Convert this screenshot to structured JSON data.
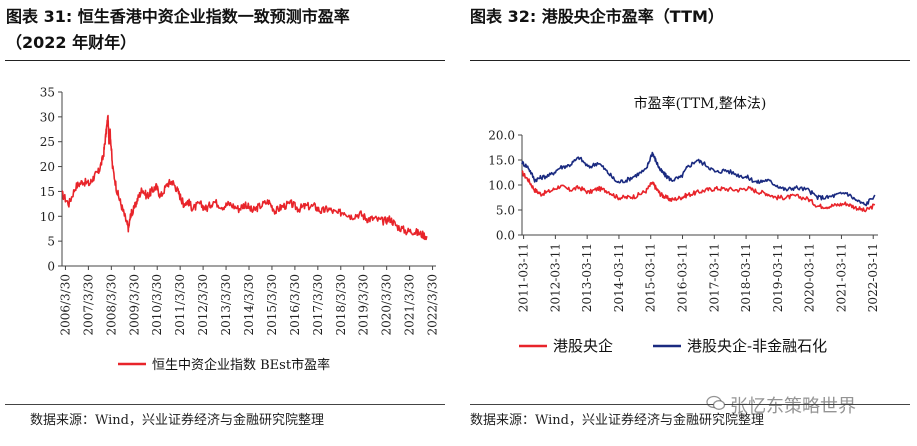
{
  "left_panel": {
    "title_line1": "图表 31:  恒生香港中资企业指数一致预测市盈率",
    "title_line2": "（2022 年财年）",
    "source": "数据来源：Wind，兴业证券经济与金融研究院整理"
  },
  "right_panel": {
    "title": "图表 32:  港股央企市盈率（TTM）",
    "source": "数据来源：Wind，兴业证券经济与金融研究院整理"
  },
  "watermark": "张忆东策略世界",
  "colors": {
    "red": "#e8242a",
    "navy": "#1a2a80",
    "axis": "#444444"
  },
  "chart_data": [
    {
      "type": "line",
      "title": "",
      "xlabel": "",
      "ylabel": "",
      "ylim": [
        0,
        35
      ],
      "yticks": [
        0,
        5,
        10,
        15,
        20,
        25,
        30,
        35
      ],
      "x_categories": [
        "2006/3/30",
        "2007/3/30",
        "2008/3/30",
        "2009/3/30",
        "2010/3/30",
        "2011/3/30",
        "2012/3/30",
        "2013/3/30",
        "2014/3/30",
        "2015/3/30",
        "2016/3/30",
        "2017/3/30",
        "2018/3/30",
        "2019/3/30",
        "2020/3/30",
        "2021/3/30",
        "2022/3/30"
      ],
      "legend": [
        "恒生中资企业指数 BEst市盈率"
      ],
      "series": [
        {
          "name": "恒生中资企业指数 BEst市盈率",
          "color": "#e8242a",
          "x": [
            0.0,
            0.3,
            0.6,
            0.9,
            1.2,
            1.4,
            1.6,
            1.8,
            1.9,
            2.0,
            2.05,
            2.1,
            2.2,
            2.4,
            2.6,
            2.8,
            2.9,
            3.0,
            3.1,
            3.3,
            3.5,
            3.7,
            3.9,
            4.1,
            4.3,
            4.6,
            4.8,
            5.0,
            5.2,
            5.3,
            5.5,
            5.7,
            6.0,
            6.3,
            6.6,
            7.0,
            7.3,
            7.7,
            8.0,
            8.3,
            8.6,
            9.0,
            9.3,
            9.6,
            10.0,
            10.3,
            10.6,
            11.0,
            11.3,
            11.6,
            12.0,
            12.3,
            12.6,
            13.0,
            13.3,
            13.6,
            14.0,
            14.3,
            14.6,
            15.0,
            15.3,
            15.6,
            15.9
          ],
          "values": [
            14.5,
            12.5,
            16.0,
            17.0,
            16.5,
            18.0,
            19.0,
            22.0,
            26.0,
            30.0,
            25.0,
            27.0,
            20.0,
            15.0,
            12.0,
            9.0,
            7.5,
            10.5,
            11.0,
            13.5,
            15.5,
            14.0,
            15.0,
            16.0,
            14.0,
            16.5,
            17.0,
            15.5,
            13.5,
            12.5,
            13.0,
            11.5,
            12.5,
            11.5,
            13.0,
            12.0,
            12.5,
            11.5,
            12.5,
            11.0,
            12.0,
            13.0,
            11.0,
            12.0,
            12.5,
            11.5,
            12.0,
            12.0,
            11.0,
            11.5,
            10.5,
            11.0,
            10.0,
            10.5,
            9.5,
            9.5,
            9.0,
            9.5,
            8.0,
            7.0,
            7.0,
            6.5,
            6.0
          ]
        }
      ]
    },
    {
      "type": "line",
      "title": "市盈率(TTM,整体法)",
      "xlabel": "",
      "ylabel": "",
      "ylim": [
        0,
        20
      ],
      "yticks": [
        "0.0",
        "5.0",
        "10.0",
        "15.0",
        "20.0"
      ],
      "x_categories": [
        "2011-03-11",
        "2012-03-11",
        "2013-03-11",
        "2014-03-11",
        "2015-03-11",
        "2016-03-11",
        "2017-03-11",
        "2018-03-11",
        "2019-03-11",
        "2020-03-11",
        "2021-03-11",
        "2022-03-11"
      ],
      "legend": [
        "港股央企",
        "港股央企-非金融石化"
      ],
      "series": [
        {
          "name": "港股央企",
          "color": "#e8242a",
          "x": [
            0.0,
            0.2,
            0.4,
            0.6,
            0.9,
            1.2,
            1.5,
            1.8,
            2.1,
            2.4,
            2.7,
            3.0,
            3.3,
            3.6,
            3.9,
            4.1,
            4.2,
            4.35,
            4.5,
            4.7,
            5.0,
            5.2,
            5.5,
            5.8,
            6.1,
            6.4,
            6.8,
            7.1,
            7.4,
            7.7,
            8.0,
            8.3,
            8.6,
            9.0,
            9.3,
            9.6,
            9.9,
            10.2,
            10.5,
            10.8,
            11.1
          ],
          "values": [
            12.5,
            11.0,
            9.0,
            8.2,
            8.8,
            9.8,
            9.0,
            9.5,
            8.5,
            9.3,
            8.8,
            7.5,
            7.5,
            7.8,
            8.8,
            10.5,
            9.5,
            8.2,
            7.6,
            7.0,
            7.5,
            8.0,
            8.5,
            9.0,
            9.3,
            9.2,
            9.0,
            9.4,
            8.7,
            8.3,
            7.5,
            7.5,
            7.8,
            7.2,
            5.8,
            5.7,
            6.0,
            6.3,
            5.5,
            4.8,
            6.0
          ]
        },
        {
          "name": "港股央企-非金融石化",
          "color": "#1a2a80",
          "x": [
            0.0,
            0.2,
            0.4,
            0.6,
            0.9,
            1.2,
            1.5,
            1.8,
            2.1,
            2.4,
            2.7,
            3.0,
            3.3,
            3.6,
            3.9,
            4.1,
            4.2,
            4.35,
            4.5,
            4.7,
            5.0,
            5.2,
            5.5,
            5.8,
            6.1,
            6.4,
            6.8,
            7.1,
            7.4,
            7.7,
            8.0,
            8.3,
            8.6,
            9.0,
            9.3,
            9.6,
            9.9,
            10.2,
            10.5,
            10.8,
            11.1
          ],
          "values": [
            14.5,
            13.5,
            11.0,
            11.5,
            12.0,
            13.5,
            14.0,
            15.5,
            13.5,
            14.5,
            12.5,
            10.5,
            11.0,
            12.0,
            13.0,
            16.5,
            15.0,
            13.0,
            12.0,
            11.0,
            11.5,
            13.5,
            15.0,
            14.0,
            12.5,
            13.0,
            12.0,
            11.5,
            10.5,
            11.0,
            10.0,
            9.0,
            9.5,
            9.0,
            7.5,
            7.5,
            8.0,
            8.5,
            7.0,
            6.0,
            8.0
          ]
        }
      ]
    }
  ]
}
